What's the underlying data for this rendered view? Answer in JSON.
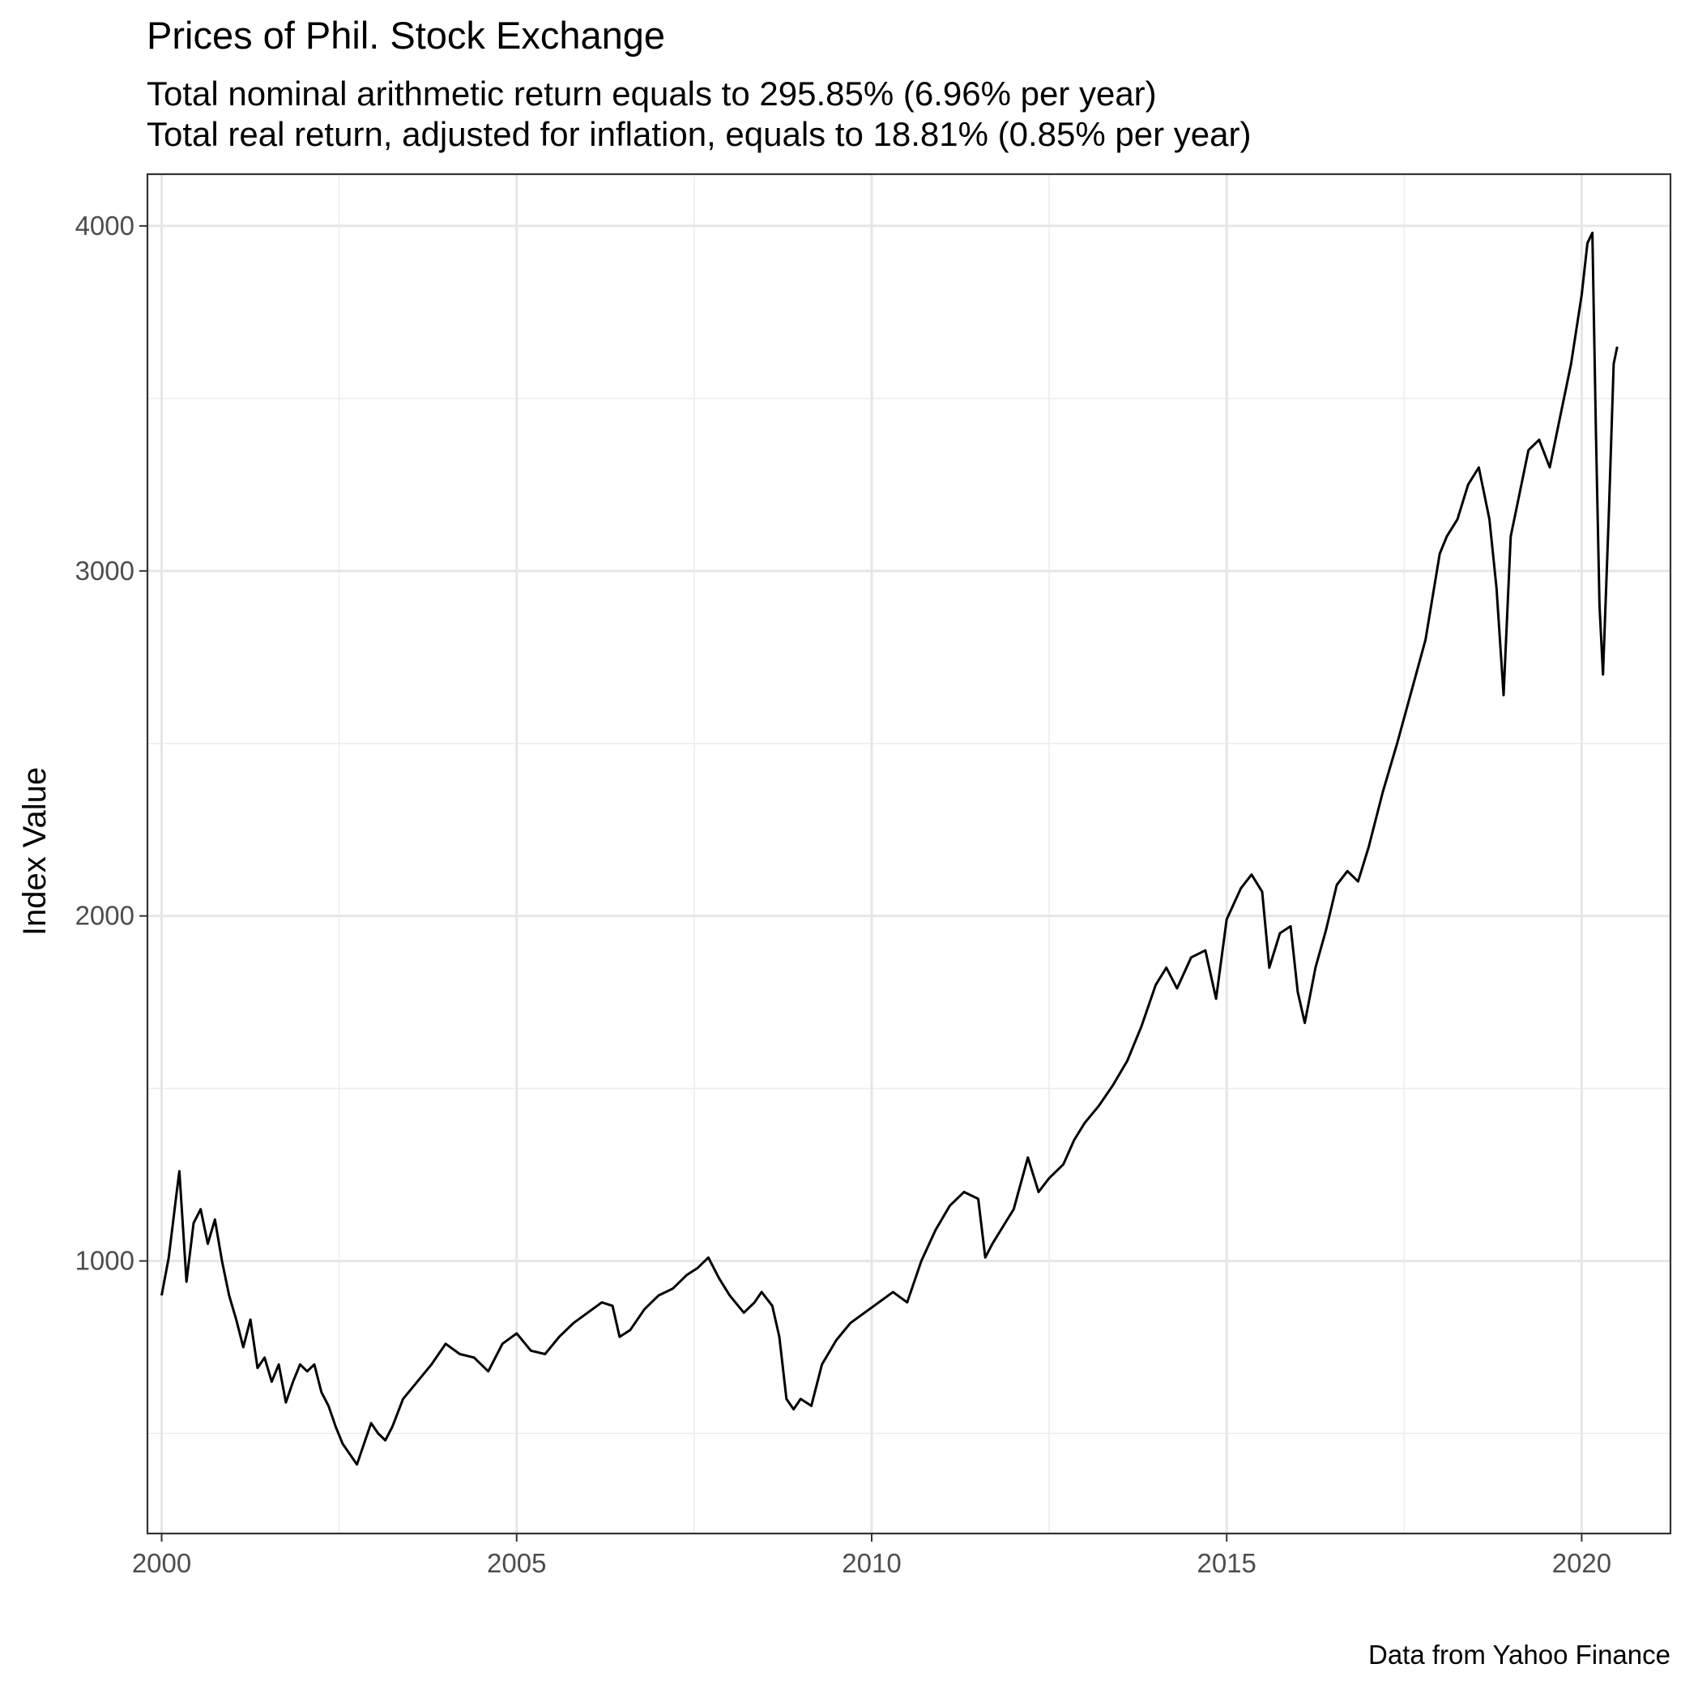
{
  "chart_data": {
    "type": "line",
    "title": "Prices of Phil. Stock Exchange",
    "subtitle": [
      "Total nominal arithmetic return equals to 295.85% (6.96% per year)",
      "Total real return, adjusted for inflation, equals to 18.81% (0.85% per year)"
    ],
    "xlabel": "",
    "ylabel": "Index Value",
    "caption": "Data from Yahoo Finance",
    "xlim": [
      1999.8,
      2021.25
    ],
    "ylim": [
      210,
      4150
    ],
    "x_ticks": [
      2000,
      2005,
      2010,
      2015,
      2020
    ],
    "x_tick_labels": [
      "2000",
      "2005",
      "2010",
      "2015",
      "2020"
    ],
    "x_minor_ticks": [
      2002.5,
      2007.5,
      2012.5,
      2017.5
    ],
    "y_ticks": [
      1000,
      2000,
      3000,
      4000
    ],
    "y_tick_labels": [
      "1000",
      "2000",
      "3000",
      "4000"
    ],
    "y_minor_ticks": [
      500,
      1500,
      2500,
      3500
    ],
    "grid": true,
    "legend": "none",
    "line_color": "#000000",
    "series": [
      {
        "x": [
          2000.0,
          2000.1,
          2000.2,
          2000.25,
          2000.35,
          2000.45,
          2000.55,
          2000.65,
          2000.75,
          2000.85,
          2000.95,
          2001.05,
          2001.15,
          2001.25,
          2001.35,
          2001.45,
          2001.55,
          2001.65,
          2001.75,
          2001.85,
          2001.95,
          2002.05,
          2002.15,
          2002.25,
          2002.35,
          2002.45,
          2002.55,
          2002.65,
          2002.75,
          2002.85,
          2002.95,
          2003.05,
          2003.15,
          2003.25,
          2003.4,
          2003.6,
          2003.8,
          2004.0,
          2004.2,
          2004.4,
          2004.6,
          2004.8,
          2005.0,
          2005.2,
          2005.4,
          2005.6,
          2005.8,
          2006.0,
          2006.2,
          2006.35,
          2006.45,
          2006.6,
          2006.8,
          2007.0,
          2007.2,
          2007.4,
          2007.55,
          2007.7,
          2007.85,
          2008.0,
          2008.2,
          2008.35,
          2008.45,
          2008.6,
          2008.7,
          2008.8,
          2008.9,
          2009.0,
          2009.15,
          2009.3,
          2009.5,
          2009.7,
          2009.9,
          2010.1,
          2010.3,
          2010.5,
          2010.7,
          2010.9,
          2011.1,
          2011.3,
          2011.5,
          2011.6,
          2011.7,
          2011.85,
          2012.0,
          2012.2,
          2012.35,
          2012.5,
          2012.7,
          2012.85,
          2013.0,
          2013.2,
          2013.4,
          2013.6,
          2013.8,
          2014.0,
          2014.15,
          2014.3,
          2014.5,
          2014.7,
          2014.85,
          2015.0,
          2015.2,
          2015.35,
          2015.5,
          2015.6,
          2015.75,
          2015.9,
          2016.0,
          2016.1,
          2016.25,
          2016.4,
          2016.55,
          2016.7,
          2016.85,
          2017.0,
          2017.2,
          2017.4,
          2017.6,
          2017.8,
          2018.0,
          2018.1,
          2018.25,
          2018.4,
          2018.55,
          2018.7,
          2018.8,
          2018.9,
          2019.0,
          2019.1,
          2019.25,
          2019.4,
          2019.55,
          2019.7,
          2019.85,
          2020.0,
          2020.08,
          2020.15,
          2020.2,
          2020.25,
          2020.3,
          2020.38,
          2020.45,
          2020.5
        ],
        "y": [
          900,
          1010,
          1180,
          1260,
          940,
          1110,
          1150,
          1050,
          1120,
          1000,
          900,
          830,
          750,
          830,
          690,
          720,
          650,
          700,
          590,
          650,
          700,
          680,
          700,
          620,
          580,
          520,
          470,
          440,
          410,
          470,
          530,
          500,
          480,
          520,
          600,
          650,
          700,
          760,
          730,
          720,
          680,
          760,
          790,
          740,
          730,
          780,
          820,
          850,
          880,
          870,
          780,
          800,
          860,
          900,
          920,
          960,
          980,
          1010,
          950,
          900,
          850,
          880,
          910,
          870,
          780,
          600,
          570,
          600,
          580,
          700,
          770,
          820,
          850,
          880,
          910,
          880,
          1000,
          1090,
          1160,
          1200,
          1180,
          1010,
          1050,
          1100,
          1150,
          1300,
          1200,
          1240,
          1280,
          1350,
          1400,
          1450,
          1510,
          1580,
          1680,
          1800,
          1850,
          1790,
          1880,
          1900,
          1760,
          1990,
          2080,
          2120,
          2070,
          1850,
          1950,
          1970,
          1780,
          1690,
          1850,
          1960,
          2090,
          2130,
          2100,
          2200,
          2360,
          2500,
          2650,
          2800,
          3050,
          3100,
          3150,
          3250,
          3300,
          3150,
          2950,
          2640,
          3100,
          3200,
          3350,
          3380,
          3300,
          3450,
          3600,
          3800,
          3950,
          3980,
          3400,
          2900,
          2700,
          3150,
          3600,
          3650
        ]
      }
    ]
  }
}
